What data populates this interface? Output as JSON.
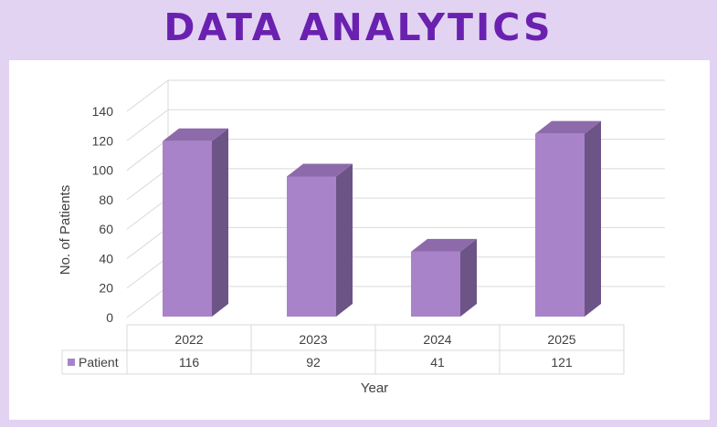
{
  "header": {
    "title": "DATA ANALYTICS"
  },
  "colors": {
    "background": "#e3d3f2",
    "title": "#6a21b0",
    "bar_front": "#a983c9",
    "bar_side": "#6c5486",
    "bar_top": "#8d6aaa",
    "grid": "#d9d9d9"
  },
  "chart_data": {
    "type": "bar",
    "style": "3d-column",
    "categories": [
      "2022",
      "2023",
      "2024",
      "2025"
    ],
    "series": [
      {
        "name": "Patient",
        "values": [
          116,
          92,
          41,
          121
        ]
      }
    ],
    "xlabel": "Year",
    "ylabel": "No. of Patients",
    "ylim": [
      0,
      140
    ],
    "yticks": [
      0,
      20,
      40,
      60,
      80,
      100,
      120,
      140
    ],
    "grid": true,
    "legend": "data-table",
    "data_table": {
      "row_label": "Patient",
      "values": [
        "116",
        "92",
        "41",
        "121"
      ]
    }
  }
}
